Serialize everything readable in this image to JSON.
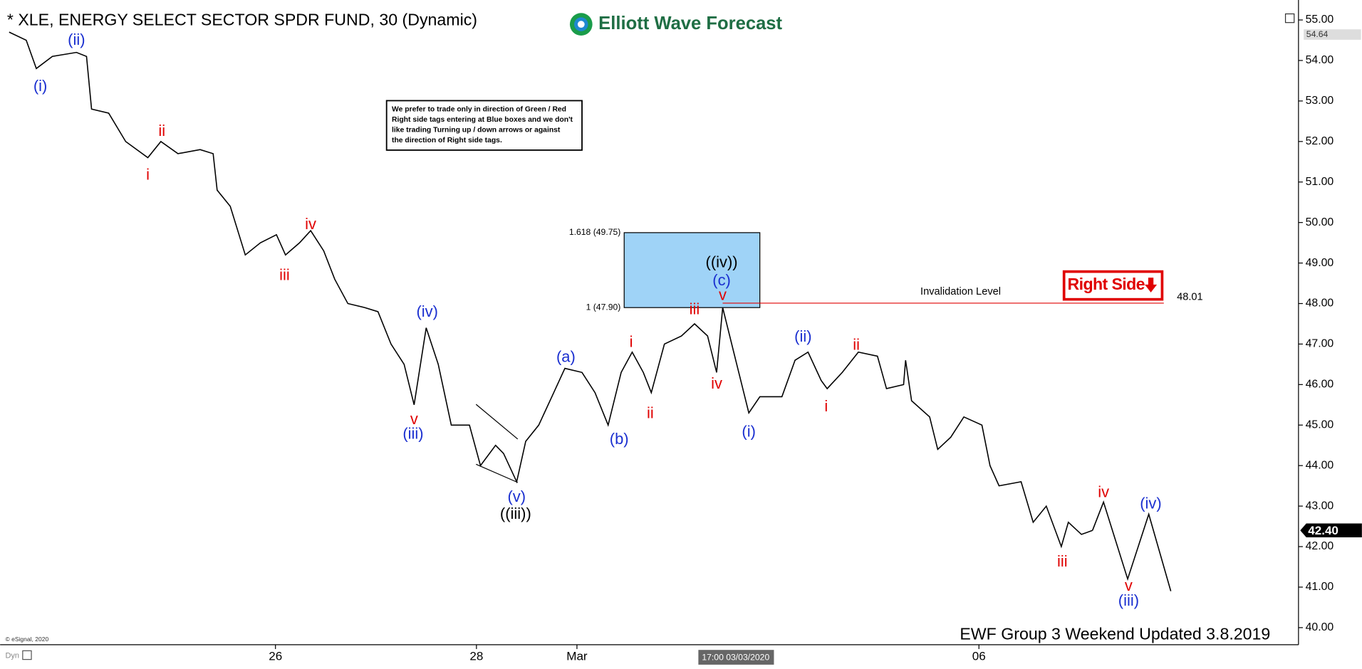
{
  "chart_data": {
    "type": "line",
    "title": "* XLE, ENERGY SELECT SECTOR SPDR FUND, 30 (Dynamic)",
    "brand": "Elliott Wave Forecast",
    "note": [
      "We prefer to trade only in direction of Green / Red",
      "Right side tags entering at Blue boxes and we don't",
      "like trading Turning up / down arrows or against",
      "the direction of Right side tags."
    ],
    "footer": "EWF Group 3 Weekend Updated 3.8.2019",
    "copyright": "© eSignal, 2020",
    "mode_label": "Dyn",
    "cursor_label": "17:00 03/03/2020",
    "xlim": [
      -2.74,
      10.18
    ],
    "xticks": [
      {
        "value": 0,
        "label": "26"
      },
      {
        "value": 2,
        "label": "28"
      },
      {
        "value": 3,
        "label": "Mar"
      },
      {
        "value": 7,
        "label": "06"
      }
    ],
    "ylim": [
      39.6,
      55.3
    ],
    "yticks": [
      {
        "value": 40,
        "label": "40.00"
      },
      {
        "value": 41,
        "label": "41.00"
      },
      {
        "value": 42,
        "label": "42.00"
      },
      {
        "value": 43,
        "label": "43.00"
      },
      {
        "value": 44,
        "label": "44.00"
      },
      {
        "value": 45,
        "label": "45.00"
      },
      {
        "value": 46,
        "label": "46.00"
      },
      {
        "value": 47,
        "label": "47.00"
      },
      {
        "value": 48,
        "label": "48.00"
      },
      {
        "value": 49,
        "label": "49.00"
      },
      {
        "value": 50,
        "label": "50.00"
      },
      {
        "value": 51,
        "label": "51.00"
      },
      {
        "value": 52,
        "label": "52.00"
      },
      {
        "value": 53,
        "label": "53.00"
      },
      {
        "value": 54,
        "label": "54.00"
      },
      {
        "value": 55,
        "label": "55.00"
      }
    ],
    "series": [
      {
        "name": "Price",
        "color": "#000000",
        "x": [
          -2.65,
          -2.48,
          -2.38,
          -2.22,
          -1.98,
          -1.88,
          -1.83,
          -1.66,
          -1.49,
          -1.27,
          -1.14,
          -0.97,
          -0.75,
          -0.62,
          -0.58,
          -0.45,
          -0.3,
          -0.15,
          0.01,
          0.1,
          0.24,
          0.35,
          0.48,
          0.59,
          0.72,
          0.89,
          1.02,
          1.15,
          1.28,
          1.38,
          1.5,
          1.62,
          1.75,
          1.93,
          2.04,
          2.19,
          2.27,
          2.4,
          2.49,
          2.62,
          2.75,
          2.88,
          3.05,
          3.18,
          3.31,
          3.44,
          3.55,
          3.66,
          3.74,
          3.87,
          4.04,
          4.17,
          4.3,
          4.39,
          4.45,
          4.56,
          4.71,
          4.82,
          5.04,
          5.17,
          5.3,
          5.43,
          5.49,
          5.64,
          5.8,
          5.99,
          6.08,
          6.25,
          6.27,
          6.33,
          6.51,
          6.59,
          6.72,
          6.85,
          7.03,
          7.11,
          7.2,
          7.42,
          7.54,
          7.67,
          7.82,
          7.89,
          8.02,
          8.13
        ],
        "values": [
          54.7,
          54.5,
          53.8,
          54.1,
          54.2,
          54.1,
          52.8,
          52.7,
          52.0,
          51.6,
          52.0,
          51.7,
          51.8,
          51.7,
          50.8,
          50.4,
          49.2,
          49.5,
          49.7,
          49.2,
          49.5,
          49.8,
          49.3,
          48.6,
          48.0,
          47.9,
          47.8,
          47.0,
          46.5,
          45.5,
          47.4,
          46.5,
          45.0,
          45.0,
          44.0,
          44.5,
          44.3,
          43.6,
          44.6,
          45.0,
          45.7,
          46.4,
          46.3,
          45.8,
          45.0,
          46.3,
          46.8,
          46.3,
          45.8,
          47.0,
          47.2,
          47.5,
          47.2,
          46.3,
          47.9,
          46.8,
          45.3,
          45.7,
          45.7,
          46.6,
          46.8,
          46.1,
          45.9,
          46.3,
          46.8,
          46.7,
          45.9,
          46.0,
          46.6,
          45.6,
          45.2,
          44.4,
          44.7,
          45.2,
          45.0,
          44.0,
          43.5,
          43.6,
          42.6,
          43.0,
          42.0,
          42.6,
          42.3,
          42.4
        ]
      },
      {
        "name": "Projection",
        "color": "#000000",
        "x": [
          8.13,
          8.24,
          8.48,
          8.69,
          8.91
        ],
        "values": [
          42.4,
          43.1,
          41.2,
          42.8,
          40.9
        ]
      }
    ],
    "annotations": [
      {
        "text": "(i)",
        "x": -2.34,
        "y": 53.35,
        "color": "#1a2fd0"
      },
      {
        "text": "(ii)",
        "x": -1.98,
        "y": 54.49,
        "color": "#1a2fd0"
      },
      {
        "text": "i",
        "x": -1.27,
        "y": 51.16,
        "color": "#e00000"
      },
      {
        "text": "ii",
        "x": -1.13,
        "y": 52.24,
        "color": "#e00000"
      },
      {
        "text": "iii",
        "x": 0.09,
        "y": 48.68,
        "color": "#e00000"
      },
      {
        "text": "iv",
        "x": 0.35,
        "y": 49.94,
        "color": "#e00000"
      },
      {
        "text": "v",
        "x": 1.38,
        "y": 45.12,
        "color": "#e00000"
      },
      {
        "text": "(iii)",
        "x": 1.37,
        "y": 44.76,
        "color": "#1a2fd0"
      },
      {
        "text": "(iv)",
        "x": 1.51,
        "y": 47.78,
        "color": "#1a2fd0"
      },
      {
        "text": "(v)",
        "x": 2.4,
        "y": 43.21,
        "color": "#1a2fd0"
      },
      {
        "text": "((iii))",
        "x": 2.39,
        "y": 42.79,
        "color": "#000000"
      },
      {
        "text": "(a)",
        "x": 2.89,
        "y": 46.66,
        "color": "#1a2fd0"
      },
      {
        "text": "(b)",
        "x": 3.42,
        "y": 44.63,
        "color": "#1a2fd0"
      },
      {
        "text": "i",
        "x": 3.54,
        "y": 47.03,
        "color": "#e00000"
      },
      {
        "text": "ii",
        "x": 3.73,
        "y": 45.27,
        "color": "#e00000"
      },
      {
        "text": "iii",
        "x": 4.17,
        "y": 47.84,
        "color": "#e00000"
      },
      {
        "text": "iv",
        "x": 4.39,
        "y": 46.0,
        "color": "#e00000"
      },
      {
        "text": "v",
        "x": 4.45,
        "y": 48.19,
        "color": "#e00000"
      },
      {
        "text": "(c)",
        "x": 4.44,
        "y": 48.55,
        "color": "#1a2fd0"
      },
      {
        "text": "((iv))",
        "x": 4.44,
        "y": 49.0,
        "color": "#000000"
      },
      {
        "text": "(i)",
        "x": 4.71,
        "y": 44.82,
        "color": "#1a2fd0"
      },
      {
        "text": "(ii)",
        "x": 5.25,
        "y": 47.16,
        "color": "#1a2fd0"
      },
      {
        "text": "i",
        "x": 5.48,
        "y": 45.44,
        "color": "#e00000"
      },
      {
        "text": "ii",
        "x": 5.78,
        "y": 46.96,
        "color": "#e00000"
      },
      {
        "text": "iii",
        "x": 7.83,
        "y": 41.61,
        "color": "#e00000"
      },
      {
        "text": "iv",
        "x": 8.24,
        "y": 43.32,
        "color": "#e00000"
      },
      {
        "text": "v",
        "x": 8.49,
        "y": 41.01,
        "color": "#e00000"
      },
      {
        "text": "(iii)",
        "x": 8.49,
        "y": 40.64,
        "color": "#1a2fd0"
      },
      {
        "text": "(iv)",
        "x": 8.71,
        "y": 43.04,
        "color": "#1a2fd0"
      }
    ],
    "blue_box": {
      "x": [
        3.47,
        4.82
      ],
      "color": "#9fd3f7",
      "levels": [
        {
          "value": 49.75,
          "label": "1.618 (49.75)"
        },
        {
          "value": 47.9,
          "label": "1 (47.90)"
        }
      ]
    },
    "invalidation": {
      "label": "Invalidation Level",
      "value": 48.01,
      "x": [
        4.45,
        8.84
      ],
      "color": "#e00000"
    },
    "right_side": {
      "text": "Right Side",
      "color": "#e00000"
    },
    "last_price": {
      "value": 42.4,
      "label": "42.40"
    },
    "marker_price": {
      "value": 54.64,
      "label": "54.64"
    }
  }
}
